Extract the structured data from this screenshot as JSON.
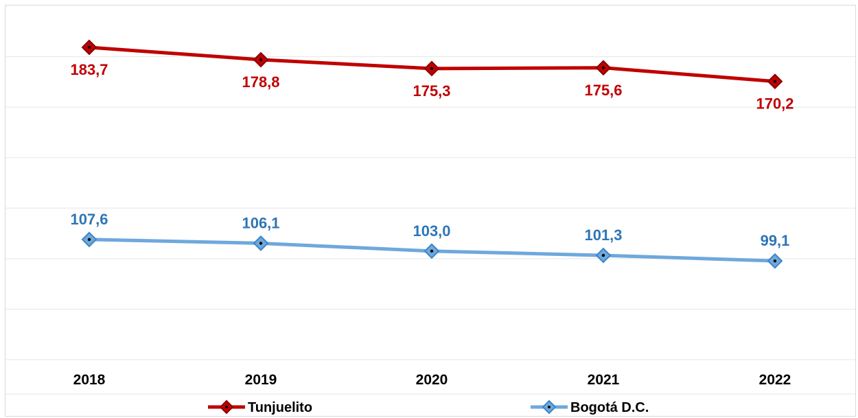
{
  "chart_data": {
    "type": "line",
    "categories": [
      "2018",
      "2019",
      "2020",
      "2021",
      "2022"
    ],
    "series": [
      {
        "name": "Tunjuelito",
        "values": [
          183.7,
          178.8,
          175.3,
          175.6,
          170.2
        ],
        "labels": [
          "183,7",
          "178,8",
          "175,3",
          "175,6",
          "170,2"
        ],
        "color": "#c00000",
        "marker_edge": "#8b0000"
      },
      {
        "name": "Bogotá D.C.",
        "values": [
          107.6,
          106.1,
          103.0,
          101.3,
          99.1
        ],
        "labels": [
          "107,6",
          "106,1",
          "103,0",
          "101,3",
          "99,1"
        ],
        "color": "#6fa8dc",
        "label_color": "#2e75b6",
        "marker_edge": "#3d85c6"
      }
    ],
    "ylim": [
      60,
      200
    ],
    "grid": true,
    "legend": "bottom"
  }
}
